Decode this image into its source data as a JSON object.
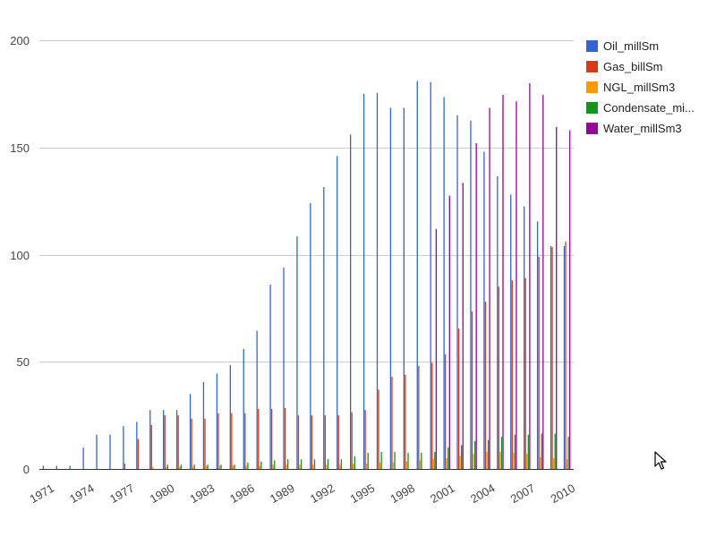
{
  "chart_data": {
    "type": "bar",
    "title": "",
    "xlabel": "",
    "ylabel": "",
    "ylim": [
      0,
      200
    ],
    "yticks": [
      0,
      50,
      100,
      150,
      200
    ],
    "grid": true,
    "legend_position": "right",
    "categories": [
      "1971",
      "1972",
      "1973",
      "1974",
      "1975",
      "1976",
      "1977",
      "1978",
      "1979",
      "1980",
      "1981",
      "1982",
      "1983",
      "1984",
      "1985",
      "1986",
      "1987",
      "1988",
      "1989",
      "1990",
      "1991",
      "1992",
      "1993",
      "1994",
      "1995",
      "1996",
      "1997",
      "1998",
      "1999",
      "2000",
      "2001",
      "2002",
      "2003",
      "2004",
      "2005",
      "2006",
      "2007",
      "2008",
      "2009",
      "2010"
    ],
    "xtick_labels": [
      "1971",
      "1974",
      "1977",
      "1980",
      "1983",
      "1986",
      "1989",
      "1992",
      "1995",
      "1998",
      "2001",
      "2004",
      "2007",
      "2010"
    ],
    "series": [
      {
        "name": "Oil_millSm",
        "color": "#3366cc",
        "values": [
          1.5,
          1.5,
          1.5,
          10,
          16,
          16,
          20,
          22,
          27.5,
          27.5,
          27.5,
          35,
          40.5,
          44.5,
          48.5,
          56,
          64.5,
          86,
          94,
          108.5,
          124,
          131.5,
          146,
          156,
          175,
          175.5,
          168.5,
          168.5,
          181,
          180.5,
          173.5,
          165,
          162.5,
          148,
          136.5,
          128,
          122.5,
          115.5,
          104,
          104
        ]
      },
      {
        "name": "Gas_billSm",
        "color": "#dc3912",
        "values": [
          0,
          0,
          0,
          0,
          0,
          0,
          2.5,
          14,
          20.5,
          25,
          25,
          23.5,
          23.5,
          26,
          26,
          26,
          28,
          28,
          28.5,
          25,
          25,
          25,
          25,
          26.5,
          27.5,
          37,
          43,
          44,
          48,
          49.5,
          53.5,
          65.5,
          73.5,
          78,
          85,
          88,
          89,
          99,
          103.5,
          106
        ]
      },
      {
        "name": "NGL_millSm3",
        "color": "#ff9900",
        "values": [
          0,
          0,
          0,
          0,
          0,
          0,
          0,
          0,
          1,
          1,
          1,
          1,
          1.5,
          1.5,
          1.5,
          1.5,
          1.5,
          2,
          2,
          2,
          2,
          2,
          2,
          2.5,
          2.5,
          3,
          3,
          3.5,
          4,
          4.5,
          5,
          6,
          7,
          8,
          8,
          7.5,
          7,
          5.5,
          5,
          4.5
        ]
      },
      {
        "name": "Condensate_mi...",
        "color": "#109618",
        "values": [
          0,
          0,
          0,
          0,
          0,
          0,
          0,
          0,
          0,
          2,
          2,
          2,
          2,
          2,
          2,
          3,
          3.5,
          4,
          4.5,
          4.5,
          4.5,
          4.5,
          4.5,
          6,
          7.5,
          8,
          8,
          7.5,
          7.5,
          8,
          10,
          11,
          13,
          13.5,
          15,
          16,
          16,
          16.5,
          16.5,
          15
        ]
      },
      {
        "name": "Water_millSm3",
        "color": "#990099",
        "values": [
          0,
          0,
          0,
          0,
          0,
          0,
          0,
          0,
          0,
          0,
          0,
          0,
          0,
          0,
          0,
          0,
          0,
          0,
          0,
          0,
          0,
          0,
          0,
          0,
          0,
          0,
          0,
          0,
          0,
          112,
          127.5,
          133.5,
          152,
          168.5,
          174.5,
          171.5,
          180,
          174.5,
          159.5,
          158
        ]
      }
    ]
  }
}
